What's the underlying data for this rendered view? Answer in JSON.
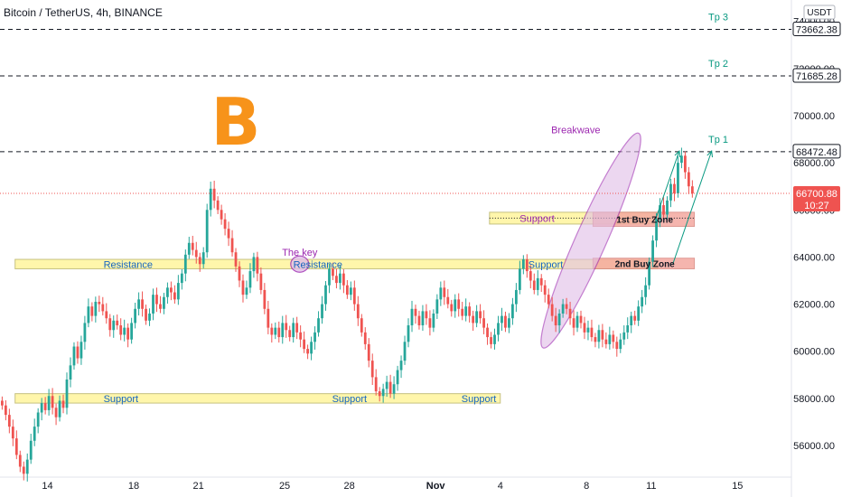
{
  "header": {
    "title": "Bitcoin / TetherUS, 4h, BINANCE",
    "currency": "USDT"
  },
  "price_tags": {
    "last": "66700.88",
    "countdown": "10:27",
    "tp3": "73662.38",
    "tp2": "71685.28",
    "tp1": "68472.48"
  },
  "colors": {
    "up": "#26a69a",
    "down": "#ef5350",
    "zone_fill": "#fff59d",
    "zone_border": "#bdb76b",
    "buy_zone_fill": "#f4a9a0",
    "tp_text": "#089981",
    "annotation": "#9c27b0",
    "ellipse_fill": "#e1bee7",
    "logo": "#f7931a"
  },
  "logo": {
    "icon": "bitcoin-logo",
    "glyph": "B"
  },
  "chart_data": {
    "type": "candlestick",
    "title": "Bitcoin / TetherUS, 4h, BINANCE",
    "ylim": [
      54500,
      74300
    ],
    "y_ticks": [
      56000,
      58000,
      60000,
      62000,
      64000,
      66000,
      68000,
      70000,
      72000,
      74000
    ],
    "x_ticks": [
      "14",
      "18",
      "21",
      "25",
      "28",
      "Nov",
      "4",
      "8",
      "11",
      "15"
    ],
    "x_tick_days": [
      0,
      4,
      7,
      11,
      14,
      18,
      21,
      25,
      28,
      32
    ],
    "x_range_days": [
      -2.2,
      34.5
    ],
    "candle_period_days": 0.1667,
    "candle_start_day": -2.1,
    "closes": [
      57700,
      57300,
      56800,
      56300,
      55600,
      55100,
      54800,
      55400,
      56200,
      56800,
      57400,
      57800,
      57500,
      58100,
      57600,
      57200,
      57900,
      57600,
      58800,
      59400,
      60200,
      59700,
      60400,
      61200,
      61900,
      61500,
      62100,
      62000,
      61700,
      61400,
      60900,
      61300,
      61100,
      60700,
      61000,
      60500,
      61200,
      61800,
      62200,
      61800,
      61300,
      61600,
      62400,
      62000,
      61800,
      62300,
      62700,
      62500,
      62200,
      62900,
      63300,
      64100,
      64600,
      64300,
      64000,
      63700,
      64200,
      66000,
      66900,
      66400,
      66000,
      65600,
      65200,
      64800,
      64200,
      63600,
      63000,
      62400,
      62700,
      63400,
      64000,
      63300,
      62600,
      61800,
      61000,
      60700,
      61000,
      60600,
      61200,
      60900,
      60600,
      61200,
      60800,
      60500,
      60100,
      59900,
      60400,
      60800,
      61400,
      62000,
      62800,
      63500,
      63200,
      62900,
      63300,
      62800,
      62400,
      62700,
      62000,
      61400,
      60800,
      60300,
      59600,
      58900,
      58300,
      58100,
      58400,
      58700,
      58200,
      58600,
      59200,
      59600,
      60400,
      61100,
      61800,
      61500,
      61100,
      61700,
      61400,
      61000,
      61600,
      62200,
      62700,
      62300,
      62000,
      61700,
      62200,
      61800,
      61500,
      61900,
      61500,
      61200,
      61700,
      61400,
      61000,
      60600,
      60300,
      60700,
      61200,
      61500,
      61000,
      61400,
      62000,
      62600,
      63500,
      63900,
      63400,
      63000,
      62600,
      63100,
      62800,
      62400,
      62000,
      61500,
      61100,
      61600,
      62000,
      61800,
      61400,
      61000,
      61500,
      61200,
      60800,
      61000,
      60600,
      60400,
      60900,
      60500,
      60300,
      60700,
      60400,
      60100,
      60500,
      60800,
      61100,
      61500,
      61300,
      61900,
      62300,
      62800,
      63800,
      64700,
      65600,
      66200,
      65800,
      66400,
      67100,
      66700,
      68000,
      68300,
      67600,
      67000,
      66700
    ],
    "series": [
      {
        "name": "Resistance",
        "kind": "zone",
        "y": [
          63500,
          63900
        ],
        "day": [
          -1.5,
          28.3
        ]
      },
      {
        "name": "Support",
        "kind": "zone",
        "y": [
          57800,
          58200
        ],
        "day": [
          -1.5,
          21.0
        ]
      },
      {
        "name": "Support",
        "kind": "zone",
        "y": [
          65400,
          65900
        ],
        "day": [
          20.5,
          28.3
        ]
      },
      {
        "name": "1st Buy Zone",
        "kind": "buy_zone",
        "y": [
          65300,
          65900
        ],
        "day": [
          25.3,
          30.0
        ]
      },
      {
        "name": "2nd Buy Zone",
        "kind": "buy_zone",
        "y": [
          63500,
          63950
        ],
        "day": [
          25.3,
          30.0
        ]
      }
    ],
    "levels": [
      {
        "label": "Tp 3",
        "value": 73662.38
      },
      {
        "label": "Tp 2",
        "value": 71685.28
      },
      {
        "label": "Tp 1",
        "value": 68472.48
      }
    ],
    "annotations": [
      {
        "text": "Resistance",
        "day": 2.6,
        "y": 63700
      },
      {
        "text": "Resistance",
        "day": 11.4,
        "y": 63700
      },
      {
        "text": "Support",
        "day": 22.3,
        "y": 63700
      },
      {
        "text": "Support",
        "day": 2.6,
        "y": 58000
      },
      {
        "text": "Support",
        "day": 13.2,
        "y": 58000
      },
      {
        "text": "Support",
        "day": 19.2,
        "y": 58000
      },
      {
        "text": "Support",
        "day": 21.9,
        "y": 65650
      },
      {
        "text": "1st Buy Zone",
        "day": 27.7,
        "y": 65600
      },
      {
        "text": "2nd Buy Zone",
        "day": 27.7,
        "y": 63720
      },
      {
        "text": "The key",
        "day": 11.7,
        "y": 64200
      },
      {
        "text": "Breakwave",
        "day": 24.5,
        "y": 69400
      }
    ],
    "arrows": [
      {
        "from": [
          28.2,
          65600
        ],
        "to": [
          29.3,
          68500
        ]
      },
      {
        "from": [
          29.0,
          63700
        ],
        "to": [
          30.8,
          68500
        ]
      }
    ],
    "last_price": 66700.88,
    "grid": false,
    "legend": "none"
  }
}
